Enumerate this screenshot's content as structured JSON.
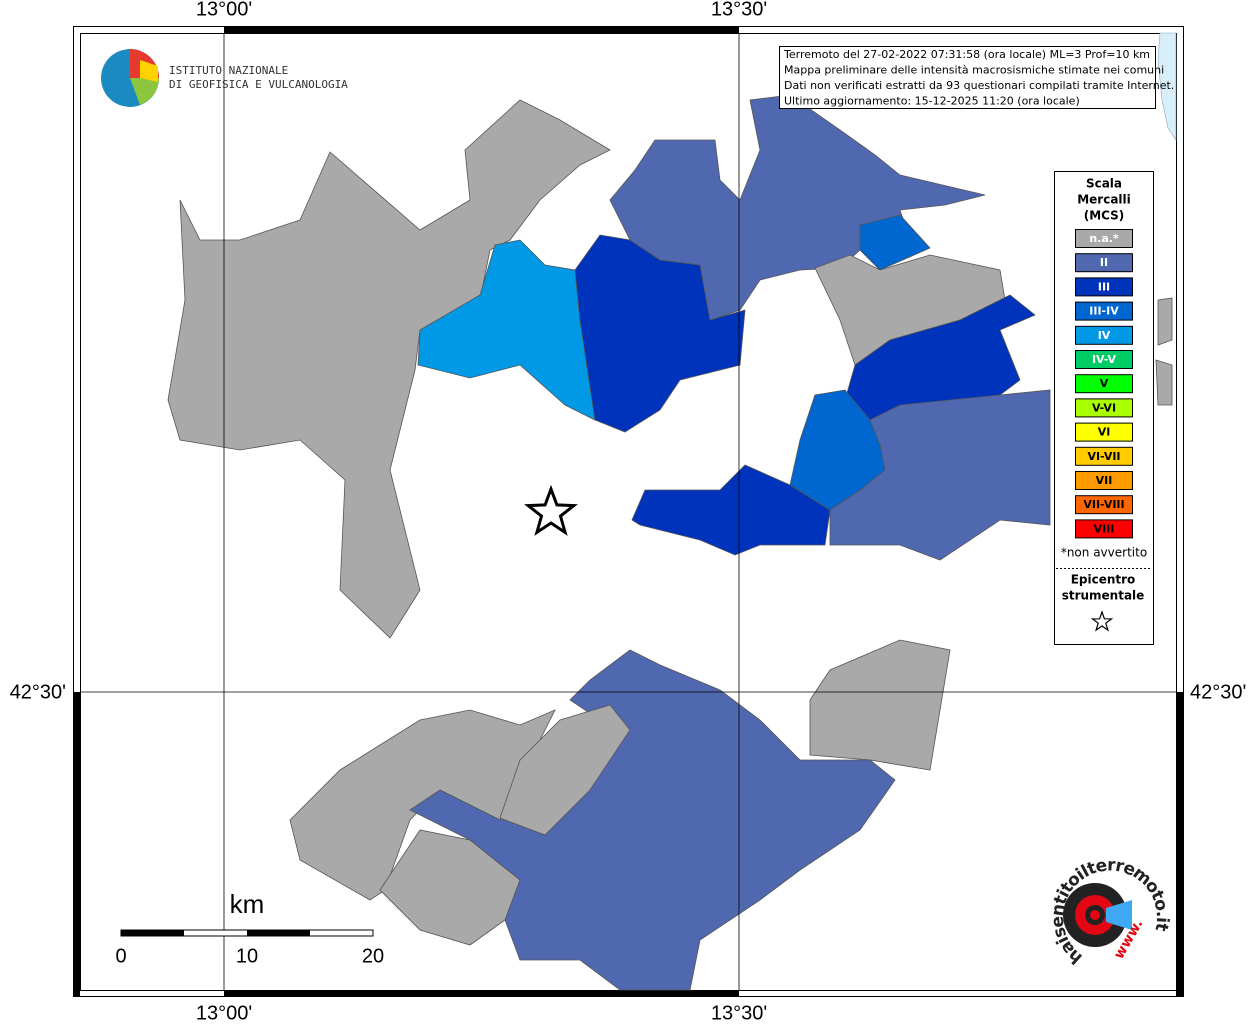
{
  "axes": {
    "top": [
      "13°00'",
      "13°30'"
    ],
    "bottom": [
      "13°00'",
      "13°30'"
    ],
    "left": "42°30'",
    "right": "42°30'"
  },
  "logo": [
    "ISTITUTO NAZIONALE",
    "DI GEOFISICA E VULCANOLOGIA"
  ],
  "info": [
    "Terremoto del 27-02-2022 07:31:58 (ora locale) ML=3 Prof=10 km",
    "Mappa preliminare delle intensità macrosismiche stimate nei comuni",
    "Dati non verificati estratti da 93 questionari compilati tramite Internet.",
    "Ultimo aggiornamento: 15-12-2025 11:20 (ora locale)"
  ],
  "legend": {
    "title": [
      "Scala",
      "Mercalli",
      "(MCS)"
    ],
    "items": [
      {
        "label": "n.a.*",
        "color": "#a9a9a9"
      },
      {
        "label": "II",
        "color": "#5068b0"
      },
      {
        "label": "III",
        "color": "#0033bb"
      },
      {
        "label": "III-IV",
        "color": "#0066d0"
      },
      {
        "label": "IV",
        "color": "#0099e6"
      },
      {
        "label": "IV-V",
        "color": "#00cc66"
      },
      {
        "label": "V",
        "color": "#00ff00"
      },
      {
        "label": "V-VI",
        "color": "#aaff00"
      },
      {
        "label": "VI",
        "color": "#ffff00"
      },
      {
        "label": "VI-VII",
        "color": "#ffcc00"
      },
      {
        "label": "VII",
        "color": "#ff9900"
      },
      {
        "label": "VII-VIII",
        "color": "#ff6600"
      },
      {
        "label": "VIII",
        "color": "#ff0000"
      }
    ],
    "note": "*non avvertito",
    "epicenter": [
      "Epicentro",
      "strumentale"
    ]
  },
  "scale": {
    "unit": "km",
    "labels": [
      "0",
      "10",
      "20"
    ]
  },
  "site_logo": "haisentitoilterremoto.it",
  "www": "www."
}
